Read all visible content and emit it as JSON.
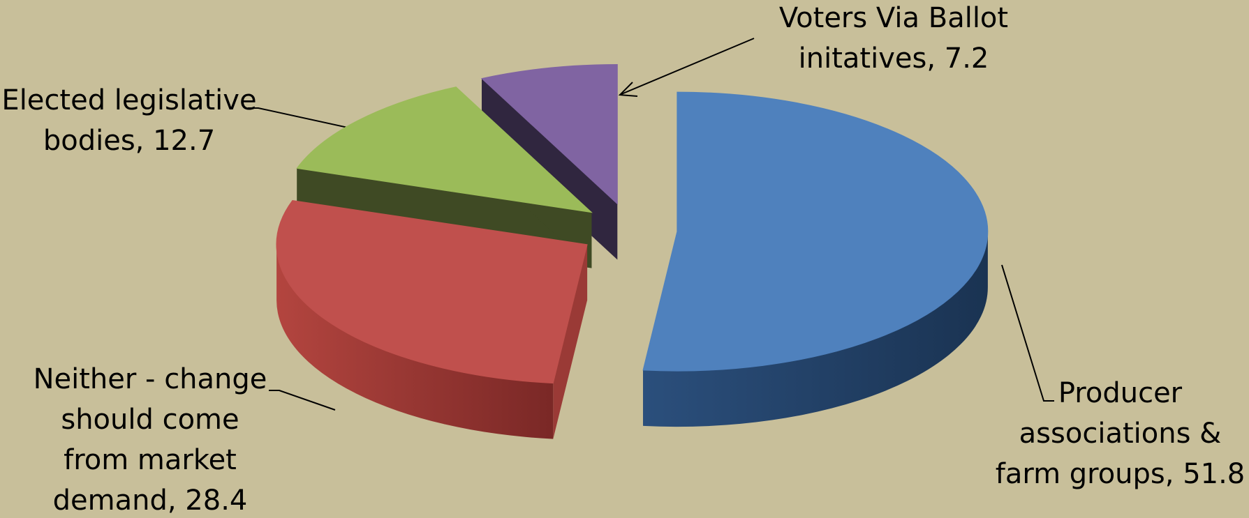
{
  "chart_data": {
    "type": "pie",
    "title": "",
    "slices": [
      {
        "category": "Producer associations & farm groups",
        "value": 51.8,
        "label_lines": [
          "Producer",
          "associations &",
          "farm groups, 51.8"
        ],
        "color": "#4f81bd"
      },
      {
        "category": "Neither - change should come from market demand",
        "value": 28.4,
        "label_lines": [
          "Neither - change",
          "should come",
          "from market",
          "demand, 28.4"
        ],
        "color": "#c0504d"
      },
      {
        "category": "Elected legislative bodies",
        "value": 12.7,
        "label_lines": [
          "Elected legislative",
          "bodies, 12.7"
        ],
        "color": "#9bbb59"
      },
      {
        "category": "Voters Via Ballot initatives",
        "value": 7.2,
        "label_lines": [
          "Voters Via Ballot",
          "initatives, 7.2"
        ],
        "color": "#8064a2"
      }
    ],
    "style": "3d-exploded",
    "background": "#c8bf9a"
  }
}
